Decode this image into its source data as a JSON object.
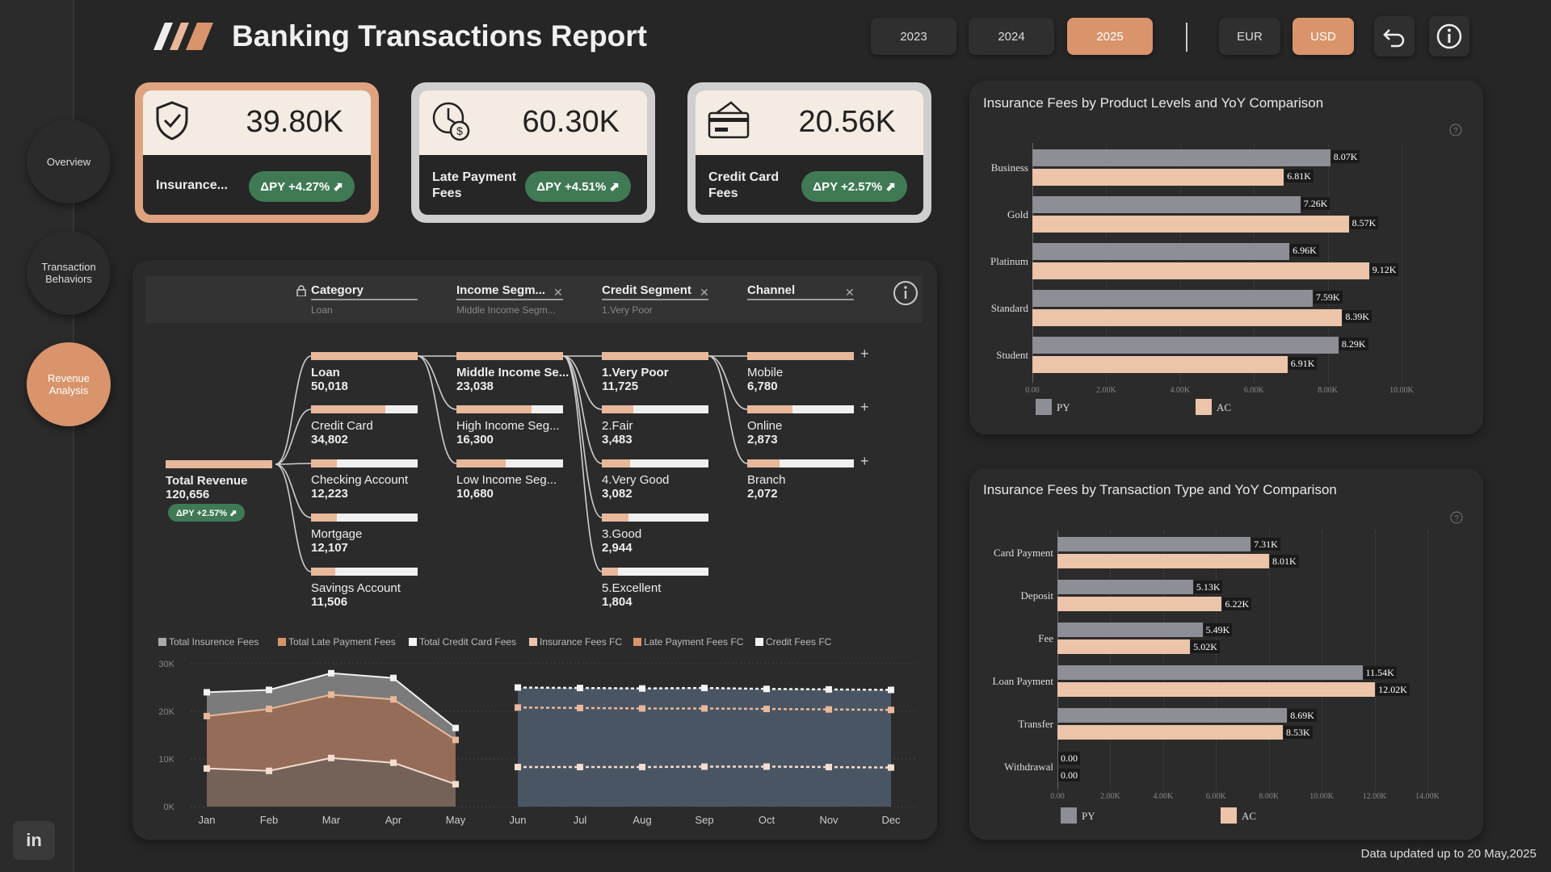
{
  "header": {
    "title": "Banking Transactions Report",
    "years": [
      "2023",
      "2024",
      "2025"
    ],
    "active_year": "2025",
    "currencies": [
      "EUR",
      "USD"
    ],
    "active_currency": "USD"
  },
  "nav": {
    "items": [
      "Overview",
      "Transaction Behaviors",
      "Revenue Analysis"
    ],
    "active": "Revenue Analysis"
  },
  "kpis": [
    {
      "value": "39.80K",
      "label": "Insurance...",
      "badge": "ΔPY +4.27% ⬈",
      "icon": "shield-check-icon"
    },
    {
      "value": "60.30K",
      "label": "Late Payment Fees",
      "badge": "ΔPY +4.51% ⬈",
      "icon": "clock-dollar-icon"
    },
    {
      "value": "20.56K",
      "label": "Credit Card Fees",
      "badge": "ΔPY +2.57% ⬈",
      "icon": "credit-card-icon"
    }
  ],
  "tree": {
    "filters": [
      {
        "title": "Category",
        "sub": "Loan",
        "locked": true
      },
      {
        "title": "Income Segm...",
        "sub": "Middle Income Segm...",
        "closable": true
      },
      {
        "title": "Credit Segment",
        "sub": "1.Very Poor",
        "closable": true
      },
      {
        "title": "Channel",
        "sub": "",
        "closable": true
      }
    ],
    "root": {
      "label": "Total Revenue",
      "value": "120,656",
      "badge": "ΔPY +2.57% ⬈"
    },
    "category": [
      {
        "label": "Loan",
        "value": "50,018"
      },
      {
        "label": "Credit Card",
        "value": "34,802"
      },
      {
        "label": "Checking Account",
        "value": "12,223"
      },
      {
        "label": "Mortgage",
        "value": "12,107"
      },
      {
        "label": "Savings Account",
        "value": "11,506"
      }
    ],
    "income": [
      {
        "label": "Middle Income Se...",
        "value": "23,038"
      },
      {
        "label": "High Income Seg...",
        "value": "16,300"
      },
      {
        "label": "Low Income Seg...",
        "value": "10,680"
      }
    ],
    "credit": [
      {
        "label": "1.Very Poor",
        "value": "11,725"
      },
      {
        "label": "2.Fair",
        "value": "3,483"
      },
      {
        "label": "4.Very Good",
        "value": "3,082"
      },
      {
        "label": "3.Good",
        "value": "2,944"
      },
      {
        "label": "5.Excellent",
        "value": "1,804"
      }
    ],
    "channel": [
      {
        "label": "Mobile",
        "value": "6,780"
      },
      {
        "label": "Online",
        "value": "2,873"
      },
      {
        "label": "Branch",
        "value": "2,072"
      }
    ]
  },
  "line_legend": [
    "Total Insurence Fees",
    "Total Late Payment Fees",
    "Total Credit Card Fees",
    "Insurance Fees FC",
    "Late Payment Fees FC",
    "Credit Fees FC"
  ],
  "chart_data": [
    {
      "type": "area",
      "title": "",
      "categories": [
        "Jan",
        "Feb",
        "Mar",
        "Apr",
        "May",
        "Jun",
        "Jul",
        "Aug",
        "Sep",
        "Oct",
        "Nov",
        "Dec"
      ],
      "ylim": [
        0,
        30000
      ],
      "yticks": [
        "0K",
        "10K",
        "20K",
        "30K"
      ],
      "series": [
        {
          "name": "Total Insurence Fees",
          "values": [
            24000,
            24500,
            28000,
            27000,
            16500,
            null,
            null,
            null,
            null,
            null,
            null,
            null
          ]
        },
        {
          "name": "Total Late Payment Fees",
          "values": [
            19000,
            20500,
            23500,
            22500,
            14000,
            null,
            null,
            null,
            null,
            null,
            null,
            null
          ]
        },
        {
          "name": "Total Credit Card Fees",
          "values": [
            8000,
            7500,
            10200,
            9200,
            4700,
            null,
            null,
            null,
            null,
            null,
            null,
            null
          ]
        },
        {
          "name": "Insurance Fees FC",
          "values": [
            null,
            null,
            null,
            null,
            null,
            25000,
            24900,
            24800,
            24900,
            24700,
            24600,
            24500
          ]
        },
        {
          "name": "Late Payment Fees FC",
          "values": [
            null,
            null,
            null,
            null,
            null,
            20800,
            20700,
            20600,
            20600,
            20500,
            20400,
            20300
          ]
        },
        {
          "name": "Credit Fees FC",
          "values": [
            null,
            null,
            null,
            null,
            null,
            8300,
            8300,
            8300,
            8400,
            8400,
            8300,
            8200
          ]
        }
      ]
    },
    {
      "type": "bar",
      "orientation": "horizontal",
      "title": "Insurance Fees by Product Levels and YoY Comparison",
      "categories": [
        "Business",
        "Gold",
        "Platinum",
        "Standard",
        "Student"
      ],
      "xlim": [
        0,
        10000
      ],
      "xticks": [
        "0.00",
        "2.00K",
        "4.00K",
        "6.00K",
        "8.00K",
        "10.00K"
      ],
      "series": [
        {
          "name": "PY",
          "values": [
            8070,
            7260,
            6960,
            7590,
            8290
          ],
          "labels": [
            "8.07K",
            "7.26K",
            "6.96K",
            "7.59K",
            "8.29K"
          ]
        },
        {
          "name": "AC",
          "values": [
            6810,
            8570,
            9120,
            8390,
            6910
          ],
          "labels": [
            "6.81K",
            "8.57K",
            "9.12K",
            "8.39K",
            "6.91K"
          ]
        }
      ]
    },
    {
      "type": "bar",
      "orientation": "horizontal",
      "title": "Insurance Fees by Transaction Type and YoY Comparison",
      "categories": [
        "Card Payment",
        "Deposit",
        "Fee",
        "Loan Payment",
        "Transfer",
        "Withdrawal"
      ],
      "xlim": [
        0,
        14000
      ],
      "xticks": [
        "0.00",
        "2.00K",
        "4.00K",
        "6.00K",
        "8.00K",
        "10.00K",
        "12.00K",
        "14.00K"
      ],
      "series": [
        {
          "name": "PY",
          "values": [
            7310,
            5130,
            5490,
            11540,
            8690,
            0
          ],
          "labels": [
            "7.31K",
            "5.13K",
            "5.49K",
            "11.54K",
            "8.69K",
            "0.00"
          ]
        },
        {
          "name": "AC",
          "values": [
            8010,
            6220,
            5020,
            12020,
            8530,
            0
          ],
          "labels": [
            "8.01K",
            "6.22K",
            "5.02K",
            "12.02K",
            "8.53K",
            "0.00"
          ]
        }
      ]
    }
  ],
  "colors": {
    "accent": "#d9946c",
    "py": "#8e8e96",
    "ac": "#ecc4aa",
    "badge": "#3f7a55",
    "forecast_area": "#4a5564"
  },
  "footer": "Data updated up to 20 May,2025"
}
